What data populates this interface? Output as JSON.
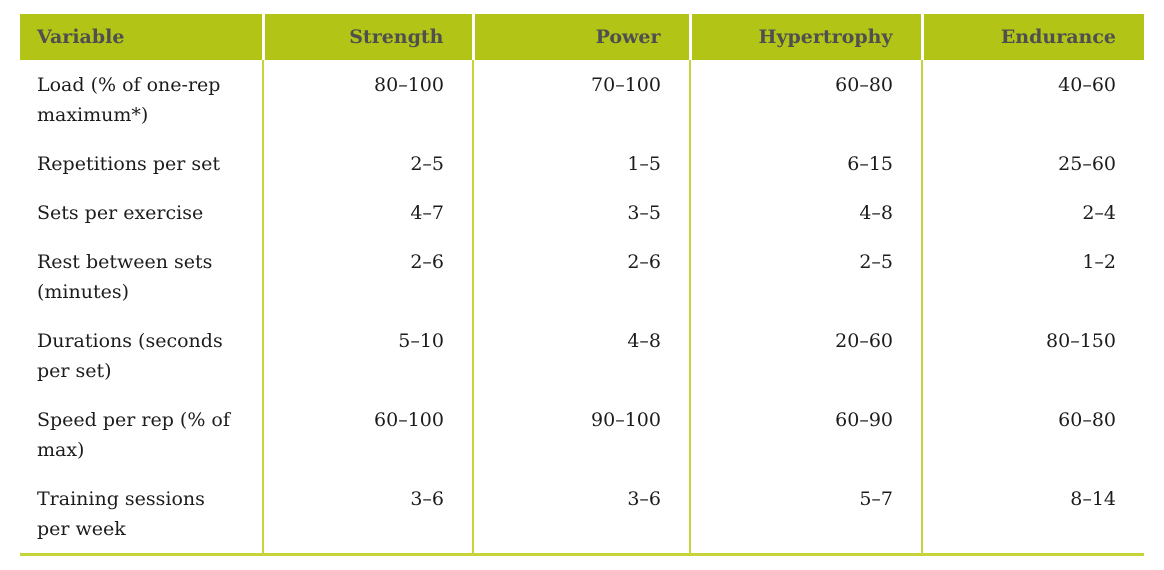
{
  "table": {
    "columns": [
      {
        "key": "variable",
        "label": "Variable"
      },
      {
        "key": "strength",
        "label": "Strength"
      },
      {
        "key": "power",
        "label": "Power"
      },
      {
        "key": "hypertrophy",
        "label": "Hypertrophy"
      },
      {
        "key": "endurance",
        "label": "Endurance"
      }
    ],
    "rows": [
      {
        "label": "Load (% of one-rep maximum*)",
        "values": [
          "80–100",
          "70–100",
          "60–80",
          "40–60"
        ]
      },
      {
        "label": "Repetitions per set",
        "values": [
          "2–5",
          "1–5",
          "6–15",
          "25–60"
        ]
      },
      {
        "label": "Sets per exercise",
        "values": [
          "4–7",
          "3–5",
          "4–8",
          "2–4"
        ]
      },
      {
        "label": "Rest between sets (minutes)",
        "values": [
          "2–6",
          "2–6",
          "2–5",
          "1–2"
        ]
      },
      {
        "label": "Durations (seconds per set)",
        "values": [
          "5–10",
          "4–8",
          "20–60",
          "80–150"
        ]
      },
      {
        "label": "Speed per rep (% of max)",
        "values": [
          "60–100",
          "90–100",
          "60–90",
          "60–80"
        ]
      },
      {
        "label": "Training sessions per week",
        "values": [
          "3–6",
          "3–6",
          "5–7",
          "8–14"
        ]
      }
    ]
  },
  "colors": {
    "header_background": "#b2c517",
    "header_text": "#4f4f4f",
    "body_text": "#1c1c1c",
    "divider": "#c5d438",
    "page_background": "#ffffff"
  }
}
